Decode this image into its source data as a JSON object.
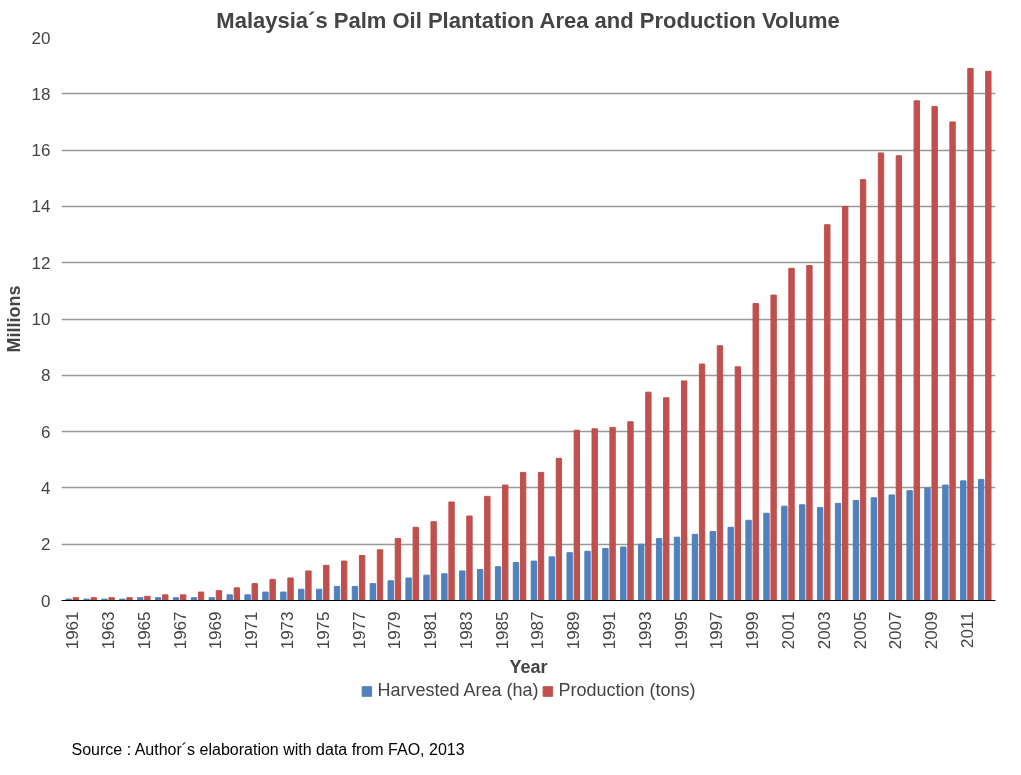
{
  "chart_data": {
    "type": "bar",
    "title": "Malaysia´s Palm Oil Plantation Area and Production Volume",
    "xlabel": "Year",
    "ylabel": "Millions",
    "categories": [
      "1961",
      null,
      "1963",
      null,
      "1965",
      null,
      "1967",
      null,
      "1969",
      null,
      "1971",
      null,
      "1973",
      null,
      "1975",
      null,
      "1977",
      null,
      "1979",
      null,
      "1981",
      null,
      "1983",
      null,
      "1985",
      null,
      "1987",
      null,
      "1989",
      null,
      "1991",
      null,
      "1993",
      null,
      "1995",
      null,
      "1997",
      null,
      "1999",
      null,
      "2001",
      null,
      "2003",
      null,
      "2005",
      null,
      "2007",
      null,
      "2009",
      null,
      "2011",
      null
    ],
    "series": [
      {
        "name": "Harvested Area (ha)",
        "color": "#4f81bd",
        "values": [
          0.05,
          0.05,
          0.05,
          0.05,
          0.1,
          0.1,
          0.1,
          0.1,
          0.1,
          0.2,
          0.2,
          0.3,
          0.3,
          0.4,
          0.4,
          0.5,
          0.5,
          0.6,
          0.7,
          0.8,
          0.9,
          0.95,
          1.05,
          1.1,
          1.2,
          1.35,
          1.4,
          1.55,
          1.7,
          1.75,
          1.85,
          1.9,
          2.0,
          2.2,
          2.25,
          2.35,
          2.45,
          2.6,
          2.85,
          3.1,
          3.35,
          3.4,
          3.3,
          3.45,
          3.55,
          3.65,
          3.75,
          3.9,
          4.0,
          4.1,
          4.25,
          4.3
        ]
      },
      {
        "name": "Production (tons)",
        "color": "#c0504d",
        "values": [
          0.1,
          0.1,
          0.1,
          0.1,
          0.15,
          0.2,
          0.2,
          0.3,
          0.35,
          0.45,
          0.6,
          0.75,
          0.8,
          1.05,
          1.25,
          1.4,
          1.6,
          1.8,
          2.2,
          2.6,
          2.8,
          3.5,
          3.0,
          3.7,
          4.1,
          4.55,
          4.55,
          5.05,
          6.05,
          6.1,
          6.15,
          6.35,
          7.4,
          7.2,
          7.8,
          8.4,
          9.05,
          8.3,
          10.55,
          10.85,
          11.8,
          11.9,
          13.35,
          14.0,
          14.95,
          15.9,
          15.8,
          17.75,
          17.55,
          17.0,
          18.9,
          18.8
        ]
      }
    ],
    "ylim": [
      0,
      20
    ],
    "yticks": [
      0,
      2,
      4,
      6,
      8,
      10,
      12,
      14,
      16,
      18,
      20
    ],
    "grid": "y",
    "legend": "bottom",
    "annotations": [
      "Source : Author´s elaboration with data from FAO, 2013"
    ]
  }
}
